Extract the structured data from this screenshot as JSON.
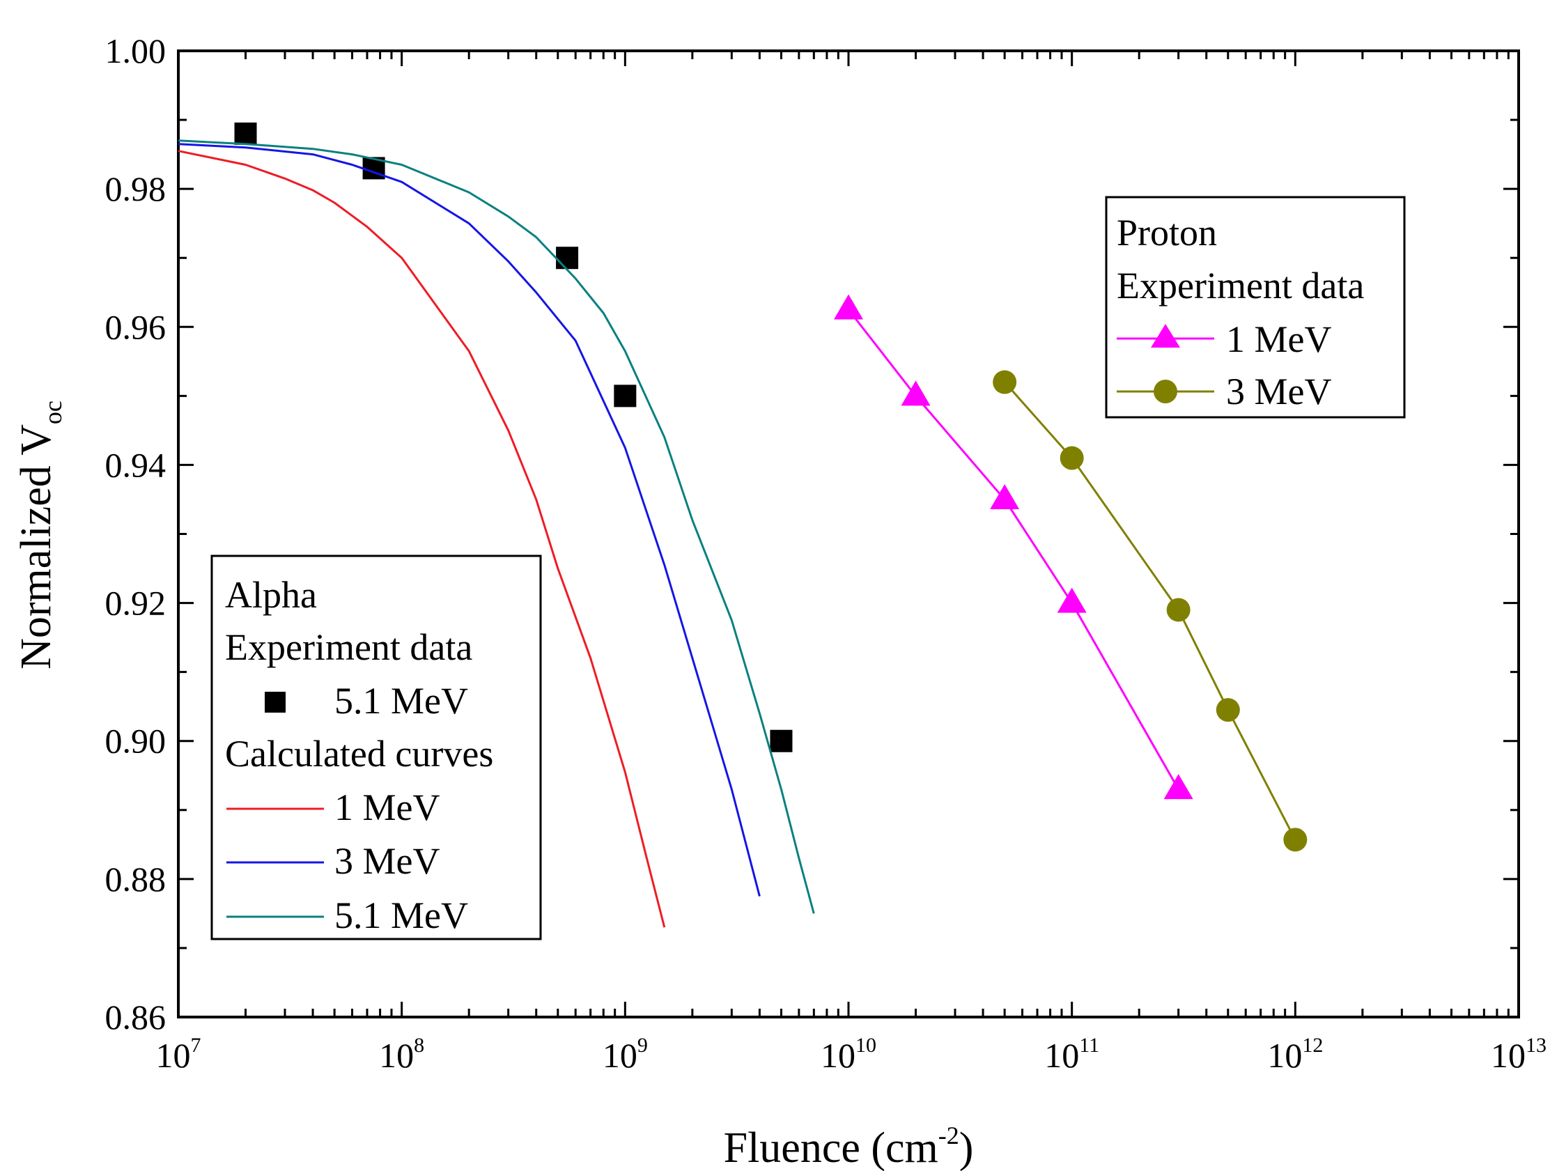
{
  "chart_data": {
    "type": "scatter",
    "xscale": "log",
    "xlim": [
      10000000,
      10000000000000
    ],
    "ylim": [
      0.86,
      1.0
    ],
    "xlabel": {
      "main": "Fluence (cm",
      "sup": "-2",
      "close": ")"
    },
    "ylabel": {
      "main": "Normalized V",
      "sub": "oc"
    },
    "xticks": [
      {
        "value": 10000000,
        "base": "10",
        "exp": "7"
      },
      {
        "value": 100000000,
        "base": "10",
        "exp": "8"
      },
      {
        "value": 1000000000,
        "base": "10",
        "exp": "9"
      },
      {
        "value": 10000000000,
        "base": "10",
        "exp": "10"
      },
      {
        "value": 100000000000,
        "base": "10",
        "exp": "11"
      },
      {
        "value": 1000000000000,
        "base": "10",
        "exp": "12"
      },
      {
        "value": 10000000000000,
        "base": "10",
        "exp": "13"
      }
    ],
    "yticks": [
      {
        "value": 0.86,
        "label": "0.86"
      },
      {
        "value": 0.88,
        "label": "0.88"
      },
      {
        "value": 0.9,
        "label": "0.90"
      },
      {
        "value": 0.92,
        "label": "0.92"
      },
      {
        "value": 0.94,
        "label": "0.94"
      },
      {
        "value": 0.96,
        "label": "0.96"
      },
      {
        "value": 0.98,
        "label": "0.98"
      },
      {
        "value": 1.0,
        "label": "1.00"
      }
    ],
    "series": [
      {
        "name": "Alpha 5.1 MeV experiment",
        "kind": "markers",
        "marker": "square",
        "color": "#000000",
        "points": [
          [
            20000000,
            0.988
          ],
          [
            75000000,
            0.983
          ],
          [
            550000000,
            0.97
          ],
          [
            1000000000,
            0.95
          ],
          [
            5000000000,
            0.9
          ]
        ]
      },
      {
        "name": "Alpha 1 MeV calculated",
        "kind": "line",
        "color": "#ee1c25",
        "points": [
          [
            10000000,
            0.9855
          ],
          [
            20000000,
            0.9835
          ],
          [
            30000000,
            0.9815
          ],
          [
            40000000,
            0.9798
          ],
          [
            50000000,
            0.978
          ],
          [
            70000000,
            0.9745
          ],
          [
            100000000,
            0.97
          ],
          [
            200000000,
            0.9565
          ],
          [
            300000000,
            0.945
          ],
          [
            400000000,
            0.935
          ],
          [
            500000000,
            0.925
          ],
          [
            700000000,
            0.912
          ],
          [
            1000000000,
            0.8955
          ],
          [
            1250000000,
            0.883
          ],
          [
            1500000000,
            0.873
          ]
        ]
      },
      {
        "name": "Alpha 3 MeV calculated",
        "kind": "line",
        "color": "#1515e6",
        "points": [
          [
            10000000,
            0.9865
          ],
          [
            20000000,
            0.986
          ],
          [
            40000000,
            0.985
          ],
          [
            60000000,
            0.9835
          ],
          [
            100000000,
            0.981
          ],
          [
            200000000,
            0.975
          ],
          [
            300000000,
            0.9695
          ],
          [
            400000000,
            0.965
          ],
          [
            600000000,
            0.958
          ],
          [
            1000000000,
            0.9425
          ],
          [
            1500000000,
            0.9255
          ],
          [
            2000000000,
            0.912
          ],
          [
            3000000000,
            0.893
          ],
          [
            4000000000,
            0.8775
          ]
        ]
      },
      {
        "name": "Alpha 5.1 MeV calculated",
        "kind": "line",
        "color": "#0a8080",
        "points": [
          [
            10000000,
            0.987
          ],
          [
            20000000,
            0.9865
          ],
          [
            40000000,
            0.9858
          ],
          [
            60000000,
            0.985
          ],
          [
            100000000,
            0.9835
          ],
          [
            200000000,
            0.9795
          ],
          [
            300000000,
            0.976
          ],
          [
            400000000,
            0.973
          ],
          [
            600000000,
            0.967
          ],
          [
            800000000,
            0.962
          ],
          [
            1000000000,
            0.9565
          ],
          [
            1500000000,
            0.944
          ],
          [
            2000000000,
            0.932
          ],
          [
            3000000000,
            0.9175
          ],
          [
            4000000000,
            0.904
          ],
          [
            5000000000,
            0.893
          ],
          [
            6000000000,
            0.883
          ],
          [
            7000000000,
            0.875
          ]
        ]
      },
      {
        "name": "Proton 1 MeV experiment",
        "kind": "line-markers",
        "marker": "triangle",
        "color": "#ff00ff",
        "points": [
          [
            10000000000,
            0.9625
          ],
          [
            20000000000,
            0.95
          ],
          [
            50000000000,
            0.935
          ],
          [
            100000000000,
            0.92
          ],
          [
            300000000000,
            0.893
          ]
        ]
      },
      {
        "name": "Proton 3 MeV experiment",
        "kind": "line-markers",
        "marker": "circle",
        "color": "#808000",
        "points": [
          [
            50000000000,
            0.952
          ],
          [
            100000000000,
            0.941
          ],
          [
            300000000000,
            0.919
          ],
          [
            500000000000,
            0.9045
          ],
          [
            1000000000000,
            0.8857
          ]
        ]
      }
    ],
    "legends": [
      {
        "position": "bottom-left",
        "header": [
          "Alpha",
          "Experiment data"
        ],
        "items": [
          {
            "label": "5.1 MeV",
            "series": 0
          }
        ],
        "subheader": "Calculated curves",
        "items2": [
          {
            "label": "1 MeV",
            "series": 1
          },
          {
            "label": "3 MeV",
            "series": 2
          },
          {
            "label": "5.1 MeV",
            "series": 3
          }
        ]
      },
      {
        "position": "top-right",
        "header": [
          "Proton",
          "Experiment data"
        ],
        "items": [
          {
            "label": "1 MeV",
            "series": 4
          },
          {
            "label": "3 MeV",
            "series": 5
          }
        ]
      }
    ]
  }
}
